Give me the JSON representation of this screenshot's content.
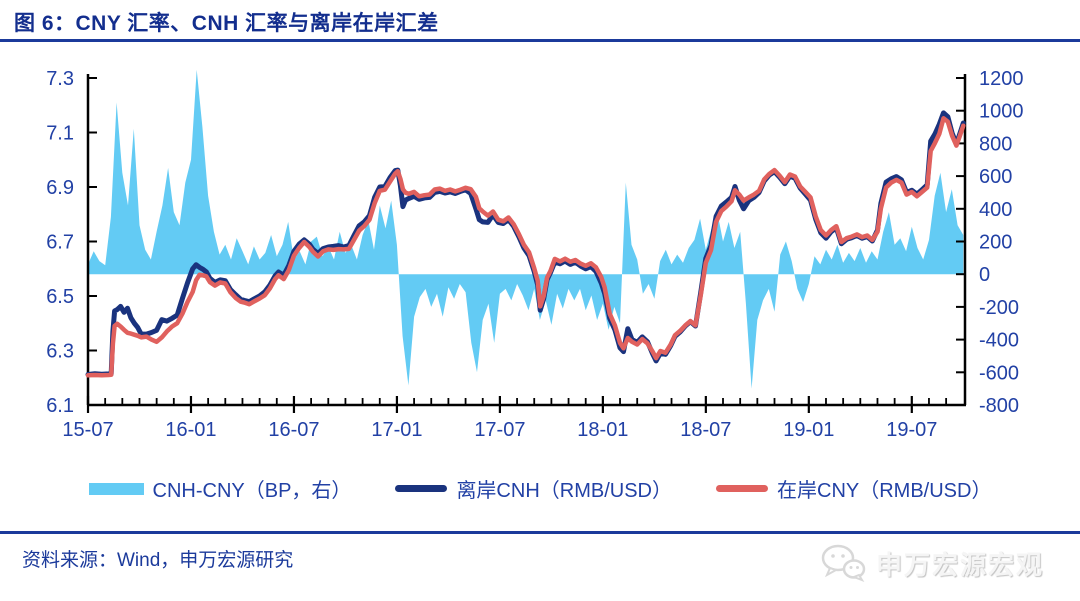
{
  "header": {
    "title": "图 6：CNY 汇率、CNH 汇率与离岸在岸汇差"
  },
  "footer": {
    "source": "资料来源：Wind，申万宏源研究",
    "watermark": "申万宏源宏观"
  },
  "colors": {
    "title_blue": "#132E8E",
    "rule_blue": "#1B3A9B",
    "axis_text_blue": "#2241A5",
    "axis_black": "#000000",
    "bar_blue": "#63CBF4",
    "cnh_navy": "#1A337E",
    "cny_red": "#E0615E",
    "watermark_gray": "#e0e0e0"
  },
  "legend": {
    "items": [
      {
        "label": "CNH-CNY（BP，右）",
        "swatch": "bar",
        "color": "#63CBF4"
      },
      {
        "label": "离岸CNH（RMB/USD）",
        "swatch": "line",
        "color": "#1A337E"
      },
      {
        "label": "在岸CNY（RMB/USD）",
        "swatch": "line",
        "color": "#E0615E"
      }
    ]
  },
  "chart_data": {
    "type": "combo-bar-line",
    "title": "图 6：CNY 汇率、CNH 汇率与离岸在岸汇差",
    "x_unit": "months since 2015-07",
    "x_domain": [
      0,
      51.1
    ],
    "x_ticks": {
      "t": [
        0,
        6,
        12,
        18,
        24,
        30,
        36,
        42,
        48
      ],
      "labels": [
        "15-07",
        "16-01",
        "16-07",
        "17-01",
        "17-07",
        "18-01",
        "18-07",
        "19-01",
        "19-07"
      ]
    },
    "minor_tick_every_months": 1,
    "grid": "off",
    "legend_position": "bottom",
    "left_axis": {
      "min": 6.1,
      "max": 7.3,
      "tick_values": [
        7.3,
        7.1,
        6.9,
        6.7,
        6.5,
        6.3,
        6.1
      ],
      "tick_labels": [
        "7.3",
        "7.1",
        "6.9",
        "6.7",
        "6.5",
        "6.3",
        "6.1"
      ]
    },
    "right_axis": {
      "min": -800,
      "max": 1200,
      "tick_values": [
        1200,
        1000,
        800,
        600,
        400,
        200,
        0,
        -200,
        -400,
        -600,
        -800
      ],
      "tick_labels": [
        "1200",
        "1000",
        "800",
        "600",
        "400",
        "200",
        "0",
        "-200",
        "-400",
        "-600",
        "-800"
      ]
    },
    "bar_series": {
      "name": "CNH-CNY（BP，右）",
      "axis": "right",
      "color": "#63CBF4",
      "t_start": 0,
      "t_step": 0.33333,
      "values": [
        60,
        140,
        80,
        55,
        350,
        1050,
        620,
        420,
        890,
        300,
        150,
        90,
        260,
        420,
        650,
        380,
        300,
        560,
        700,
        1250,
        900,
        480,
        260,
        120,
        180,
        90,
        220,
        140,
        60,
        170,
        90,
        130,
        240,
        110,
        180,
        320,
        90,
        140,
        60,
        200,
        230,
        110,
        170,
        90,
        260,
        130,
        180,
        90,
        240,
        330,
        150,
        420,
        280,
        450,
        180,
        -380,
        -680,
        -260,
        -140,
        -90,
        -200,
        -120,
        -260,
        -80,
        -150,
        -60,
        -110,
        -420,
        -600,
        -280,
        -180,
        -420,
        -120,
        -90,
        -160,
        -60,
        -130,
        -220,
        -90,
        -280,
        -160,
        -310,
        -120,
        -210,
        -90,
        -160,
        -90,
        -220,
        -130,
        -280,
        -180,
        -340,
        -200,
        -300,
        560,
        180,
        90,
        -120,
        -60,
        -150,
        80,
        150,
        60,
        120,
        70,
        160,
        210,
        340,
        150,
        280,
        380,
        200,
        320,
        160,
        260,
        -180,
        -700,
        -280,
        -160,
        -90,
        -230,
        120,
        200,
        80,
        -90,
        -170,
        -60,
        110,
        60,
        150,
        90,
        180,
        70,
        130,
        80,
        160,
        70,
        140,
        90,
        260,
        380,
        180,
        220,
        140,
        290,
        160,
        90,
        210,
        480,
        620,
        380,
        520,
        300,
        240
      ]
    },
    "lines": [
      {
        "name": "离岸CNH（RMB/USD）",
        "axis": "left",
        "color": "#1A337E"
      },
      {
        "name": "在岸CNY（RMB/USD）",
        "axis": "left",
        "color": "#E0615E"
      }
    ],
    "points_format": [
      "t_months",
      "cny_onshore",
      "cnh_offshore"
    ],
    "points": [
      [
        0.0,
        6.209,
        6.212
      ],
      [
        0.4,
        6.21,
        6.215
      ],
      [
        0.8,
        6.209,
        6.213
      ],
      [
        1.2,
        6.21,
        6.214
      ],
      [
        1.35,
        6.211,
        6.215
      ],
      [
        1.45,
        6.325,
        6.37
      ],
      [
        1.55,
        6.39,
        6.445
      ],
      [
        1.7,
        6.398,
        6.45
      ],
      [
        1.9,
        6.388,
        6.462
      ],
      [
        2.1,
        6.376,
        6.44
      ],
      [
        2.3,
        6.365,
        6.455
      ],
      [
        2.5,
        6.362,
        6.42
      ],
      [
        2.7,
        6.358,
        6.4
      ],
      [
        2.9,
        6.354,
        6.384
      ],
      [
        3.1,
        6.348,
        6.36
      ],
      [
        3.4,
        6.351,
        6.36
      ],
      [
        3.7,
        6.34,
        6.366
      ],
      [
        4.0,
        6.332,
        6.374
      ],
      [
        4.3,
        6.348,
        6.413
      ],
      [
        4.6,
        6.37,
        6.408
      ],
      [
        4.9,
        6.388,
        6.418
      ],
      [
        5.2,
        6.4,
        6.43
      ],
      [
        5.5,
        6.435,
        6.491
      ],
      [
        5.8,
        6.478,
        6.548
      ],
      [
        6.1,
        6.515,
        6.6
      ],
      [
        6.3,
        6.558,
        6.615
      ],
      [
        6.5,
        6.578,
        6.605
      ],
      [
        6.7,
        6.576,
        6.598
      ],
      [
        6.9,
        6.572,
        6.588
      ],
      [
        7.1,
        6.551,
        6.565
      ],
      [
        7.4,
        6.538,
        6.55
      ],
      [
        7.7,
        6.55,
        6.559
      ],
      [
        8.0,
        6.546,
        6.556
      ],
      [
        8.3,
        6.514,
        6.524
      ],
      [
        8.6,
        6.493,
        6.505
      ],
      [
        8.9,
        6.479,
        6.488
      ],
      [
        9.1,
        6.476,
        6.484
      ],
      [
        9.4,
        6.47,
        6.479
      ],
      [
        9.7,
        6.481,
        6.49
      ],
      [
        10.0,
        6.491,
        6.5
      ],
      [
        10.3,
        6.503,
        6.515
      ],
      [
        10.6,
        6.528,
        6.54
      ],
      [
        10.9,
        6.562,
        6.574
      ],
      [
        11.1,
        6.576,
        6.588
      ],
      [
        11.4,
        6.562,
        6.576
      ],
      [
        11.7,
        6.595,
        6.612
      ],
      [
        12.0,
        6.648,
        6.664
      ],
      [
        12.3,
        6.676,
        6.69
      ],
      [
        12.6,
        6.698,
        6.706
      ],
      [
        12.9,
        6.68,
        6.69
      ],
      [
        13.1,
        6.663,
        6.672
      ],
      [
        13.4,
        6.645,
        6.656
      ],
      [
        13.7,
        6.664,
        6.674
      ],
      [
        14.0,
        6.671,
        6.68
      ],
      [
        14.3,
        6.669,
        6.682
      ],
      [
        14.6,
        6.672,
        6.685
      ],
      [
        14.9,
        6.671,
        6.68
      ],
      [
        15.2,
        6.673,
        6.685
      ],
      [
        15.5,
        6.706,
        6.722
      ],
      [
        15.8,
        6.74,
        6.758
      ],
      [
        16.1,
        6.757,
        6.772
      ],
      [
        16.4,
        6.78,
        6.795
      ],
      [
        16.7,
        6.84,
        6.862
      ],
      [
        17.0,
        6.886,
        6.9
      ],
      [
        17.3,
        6.89,
        6.902
      ],
      [
        17.6,
        6.92,
        6.935
      ],
      [
        17.9,
        6.949,
        6.96
      ],
      [
        18.05,
        6.958,
        6.962
      ],
      [
        18.2,
        6.93,
        6.905
      ],
      [
        18.35,
        6.892,
        6.828
      ],
      [
        18.5,
        6.879,
        6.852
      ],
      [
        18.7,
        6.875,
        6.858
      ],
      [
        19.0,
        6.882,
        6.866
      ],
      [
        19.3,
        6.866,
        6.855
      ],
      [
        19.6,
        6.87,
        6.86
      ],
      [
        19.9,
        6.872,
        6.862
      ],
      [
        20.2,
        6.891,
        6.88
      ],
      [
        20.5,
        6.894,
        6.884
      ],
      [
        20.8,
        6.886,
        6.878
      ],
      [
        21.1,
        6.891,
        6.882
      ],
      [
        21.4,
        6.884,
        6.876
      ],
      [
        21.7,
        6.89,
        6.884
      ],
      [
        22.0,
        6.897,
        6.89
      ],
      [
        22.3,
        6.892,
        6.876
      ],
      [
        22.6,
        6.864,
        6.82
      ],
      [
        22.8,
        6.822,
        6.78
      ],
      [
        23.0,
        6.81,
        6.772
      ],
      [
        23.3,
        6.795,
        6.77
      ],
      [
        23.6,
        6.81,
        6.798
      ],
      [
        23.9,
        6.78,
        6.77
      ],
      [
        24.2,
        6.774,
        6.766
      ],
      [
        24.5,
        6.788,
        6.78
      ],
      [
        24.8,
        6.764,
        6.756
      ],
      [
        25.1,
        6.728,
        6.718
      ],
      [
        25.4,
        6.688,
        6.676
      ],
      [
        25.7,
        6.66,
        6.648
      ],
      [
        26.0,
        6.602,
        6.59
      ],
      [
        26.2,
        6.556,
        6.54
      ],
      [
        26.35,
        6.462,
        6.448
      ],
      [
        26.55,
        6.5,
        6.49
      ],
      [
        26.75,
        6.568,
        6.56
      ],
      [
        26.95,
        6.592,
        6.586
      ],
      [
        27.2,
        6.636,
        6.625
      ],
      [
        27.5,
        6.627,
        6.618
      ],
      [
        27.8,
        6.637,
        6.628
      ],
      [
        28.1,
        6.626,
        6.616
      ],
      [
        28.4,
        6.632,
        6.624
      ],
      [
        28.7,
        6.619,
        6.61
      ],
      [
        29.0,
        6.611,
        6.6
      ],
      [
        29.3,
        6.62,
        6.608
      ],
      [
        29.6,
        6.605,
        6.59
      ],
      [
        29.9,
        6.57,
        6.548
      ],
      [
        30.1,
        6.532,
        6.51
      ],
      [
        30.4,
        6.435,
        6.418
      ],
      [
        30.7,
        6.392,
        6.376
      ],
      [
        31.0,
        6.328,
        6.31
      ],
      [
        31.2,
        6.308,
        6.296
      ],
      [
        31.45,
        6.346,
        6.38
      ],
      [
        31.7,
        6.332,
        6.34
      ],
      [
        32.0,
        6.322,
        6.33
      ],
      [
        32.3,
        6.342,
        6.35
      ],
      [
        32.6,
        6.326,
        6.332
      ],
      [
        32.9,
        6.296,
        6.288
      ],
      [
        33.1,
        6.272,
        6.262
      ],
      [
        33.35,
        6.298,
        6.29
      ],
      [
        33.65,
        6.292,
        6.286
      ],
      [
        33.95,
        6.322,
        6.318
      ],
      [
        34.2,
        6.356,
        6.352
      ],
      [
        34.5,
        6.372,
        6.368
      ],
      [
        34.8,
        6.392,
        6.39
      ],
      [
        35.1,
        6.408,
        6.406
      ],
      [
        35.4,
        6.392,
        6.39
      ],
      [
        35.7,
        6.502,
        6.512
      ],
      [
        36.0,
        6.622,
        6.638
      ],
      [
        36.3,
        6.668,
        6.685
      ],
      [
        36.6,
        6.772,
        6.792
      ],
      [
        36.9,
        6.812,
        6.83
      ],
      [
        37.2,
        6.828,
        6.845
      ],
      [
        37.5,
        6.848,
        6.862
      ],
      [
        37.7,
        6.888,
        6.902
      ],
      [
        37.95,
        6.872,
        6.852
      ],
      [
        38.2,
        6.85,
        6.82
      ],
      [
        38.5,
        6.862,
        6.85
      ],
      [
        38.8,
        6.872,
        6.862
      ],
      [
        39.1,
        6.886,
        6.88
      ],
      [
        39.4,
        6.928,
        6.922
      ],
      [
        39.7,
        6.948,
        6.944
      ],
      [
        40.0,
        6.962,
        6.956
      ],
      [
        40.3,
        6.942,
        6.936
      ],
      [
        40.6,
        6.918,
        6.912
      ],
      [
        40.9,
        6.946,
        6.94
      ],
      [
        41.2,
        6.938,
        6.932
      ],
      [
        41.5,
        6.902,
        6.896
      ],
      [
        41.8,
        6.882,
        6.874
      ],
      [
        42.1,
        6.862,
        6.852
      ],
      [
        42.4,
        6.792,
        6.782
      ],
      [
        42.7,
        6.742,
        6.732
      ],
      [
        43.0,
        6.722,
        6.712
      ],
      [
        43.3,
        6.742,
        6.736
      ],
      [
        43.6,
        6.756,
        6.75
      ],
      [
        43.9,
        6.698,
        6.692
      ],
      [
        44.2,
        6.712,
        6.708
      ],
      [
        44.5,
        6.718,
        6.714
      ],
      [
        44.8,
        6.726,
        6.722
      ],
      [
        45.1,
        6.716,
        6.712
      ],
      [
        45.4,
        6.722,
        6.718
      ],
      [
        45.7,
        6.706,
        6.702
      ],
      [
        46.0,
        6.736,
        6.742
      ],
      [
        46.2,
        6.822,
        6.84
      ],
      [
        46.5,
        6.898,
        6.918
      ],
      [
        46.8,
        6.916,
        6.93
      ],
      [
        47.1,
        6.926,
        6.938
      ],
      [
        47.4,
        6.916,
        6.926
      ],
      [
        47.7,
        6.872,
        6.88
      ],
      [
        48.0,
        6.882,
        6.888
      ],
      [
        48.3,
        6.866,
        6.874
      ],
      [
        48.6,
        6.882,
        6.89
      ],
      [
        48.9,
        6.898,
        6.908
      ],
      [
        49.1,
        7.032,
        7.068
      ],
      [
        49.35,
        7.062,
        7.095
      ],
      [
        49.6,
        7.095,
        7.13
      ],
      [
        49.85,
        7.152,
        7.172
      ],
      [
        50.1,
        7.14,
        7.158
      ],
      [
        50.35,
        7.088,
        7.098
      ],
      [
        50.6,
        7.052,
        7.058
      ],
      [
        50.8,
        7.088,
        7.096
      ],
      [
        51.0,
        7.125,
        7.135
      ]
    ]
  }
}
